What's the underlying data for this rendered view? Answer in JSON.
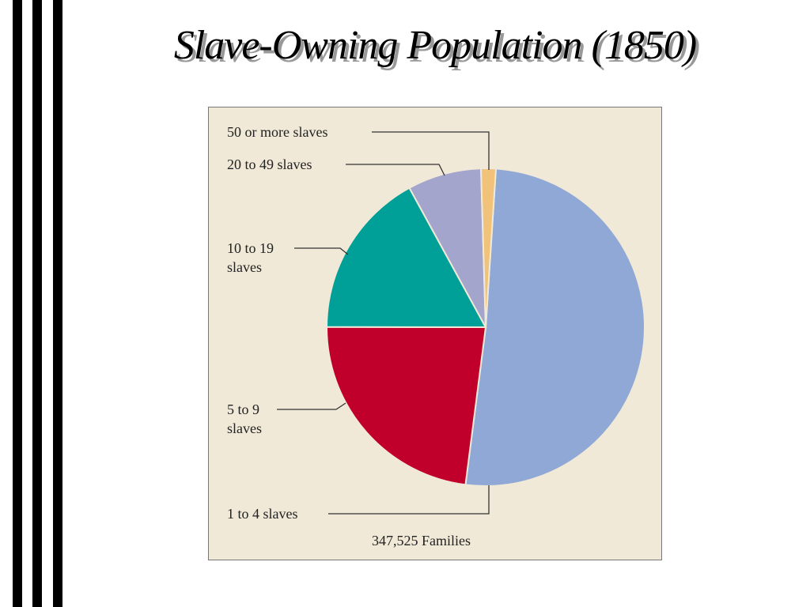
{
  "chart_data": {
    "type": "pie",
    "title": "Slave-Owning Population (1850)",
    "categories": [
      "1 to 4 slaves",
      "5 to 9 slaves",
      "10 to 19 slaves",
      "20 to 49 slaves",
      "50 or more slaves"
    ],
    "values": [
      51,
      23,
      17,
      7.5,
      1.5
    ],
    "colors": [
      "#8fa8d5",
      "#c0002a",
      "#00a098",
      "#a3a5cc",
      "#f0c27a"
    ],
    "total_label": "347,525 Families"
  }
}
